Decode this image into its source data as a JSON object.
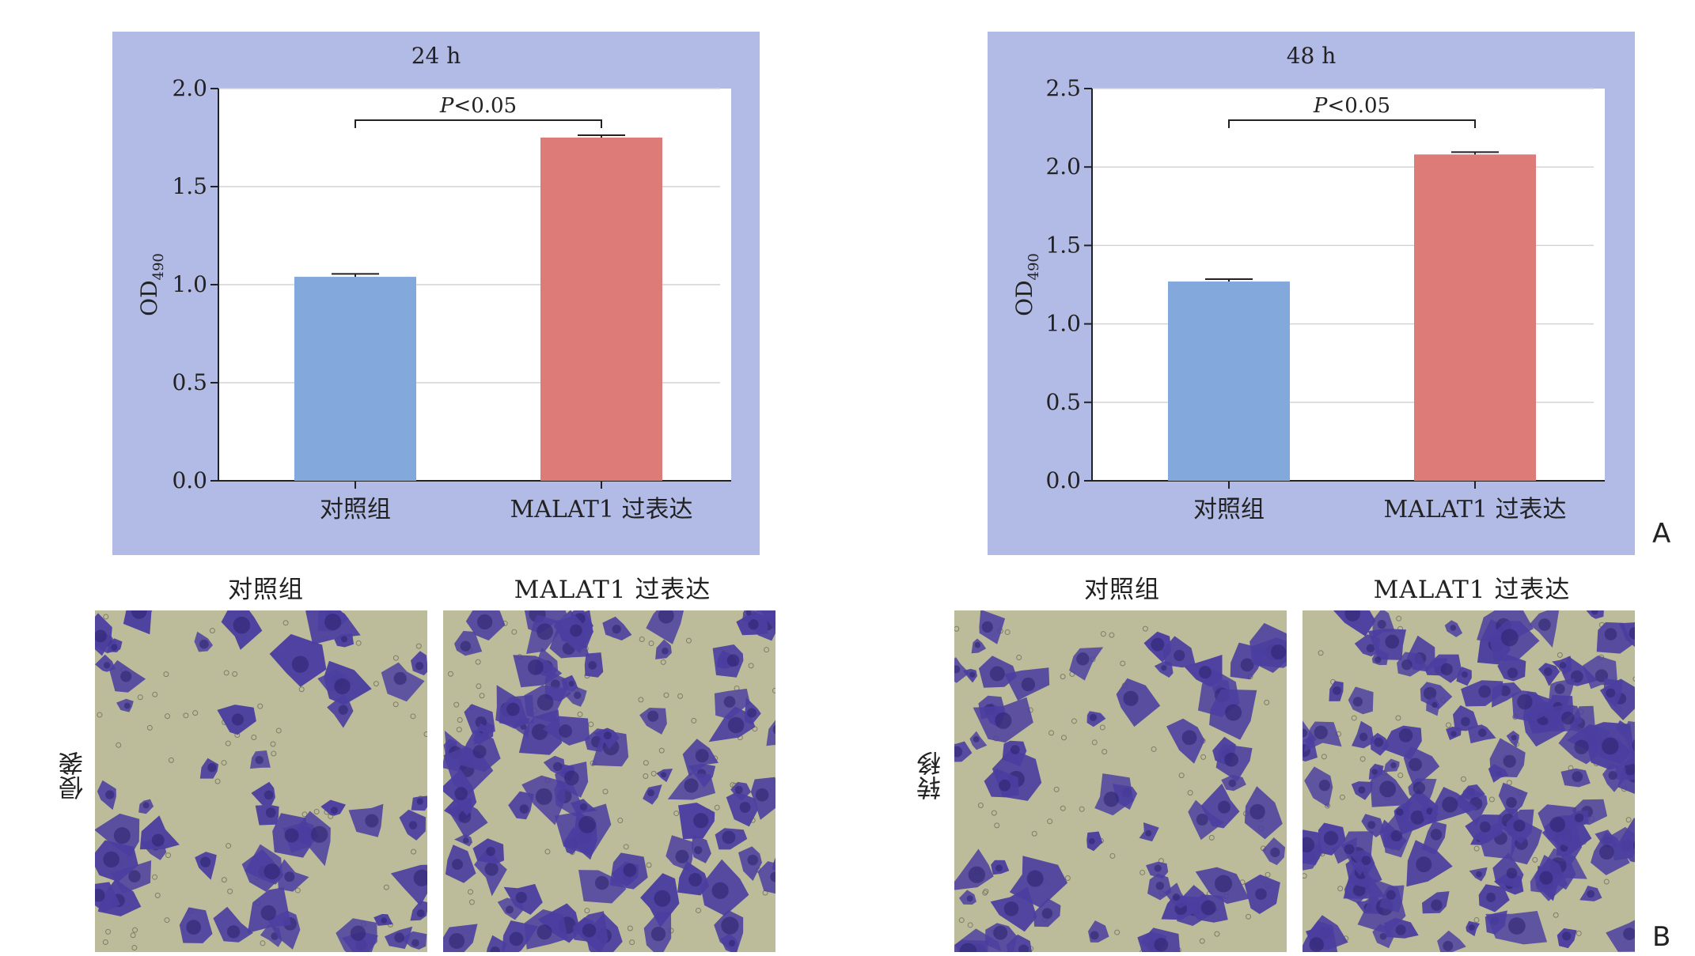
{
  "chart_data": [
    {
      "type": "bar",
      "title": "24 h",
      "ylabel_main": "OD",
      "ylabel_sub": "490",
      "categories": [
        "对照组",
        "MALAT1 过表达"
      ],
      "values": [
        1.04,
        1.75
      ],
      "errors": [
        0.015,
        0.012
      ],
      "ylim": [
        0,
        2.0
      ],
      "yticks": [
        "0.0",
        "0.5",
        "1.0",
        "1.5",
        "2.0"
      ],
      "significance": {
        "label_italic": "P",
        "label_rest": "<0.05"
      },
      "grid": true,
      "colors": [
        "#82a8dc",
        "#dd7b79"
      ],
      "panel_bg": "#b2bbe5"
    },
    {
      "type": "bar",
      "title": "48 h",
      "ylabel_main": "OD",
      "ylabel_sub": "490",
      "categories": [
        "对照组",
        "MALAT1 过表达"
      ],
      "values": [
        1.27,
        2.08
      ],
      "errors": [
        0.015,
        0.015
      ],
      "ylim": [
        0,
        2.5
      ],
      "yticks": [
        "0.0",
        "0.5",
        "1.0",
        "1.5",
        "2.0",
        "2.5"
      ],
      "significance": {
        "label_italic": "P",
        "label_rest": "<0.05"
      },
      "grid": true,
      "colors": [
        "#82a8dc",
        "#dd7b79"
      ],
      "panel_bg": "#b2bbe5"
    }
  ],
  "panel_labels": {
    "a": "A",
    "b": "B"
  },
  "micrographs": {
    "titles": [
      "对照组",
      "MALAT1 过表达",
      "对照组",
      "MALAT1 过表达"
    ],
    "row_labels": [
      "侵袭",
      "转移"
    ],
    "stain_color": "#4b3ea0",
    "background_color": "#bdbc9a"
  }
}
